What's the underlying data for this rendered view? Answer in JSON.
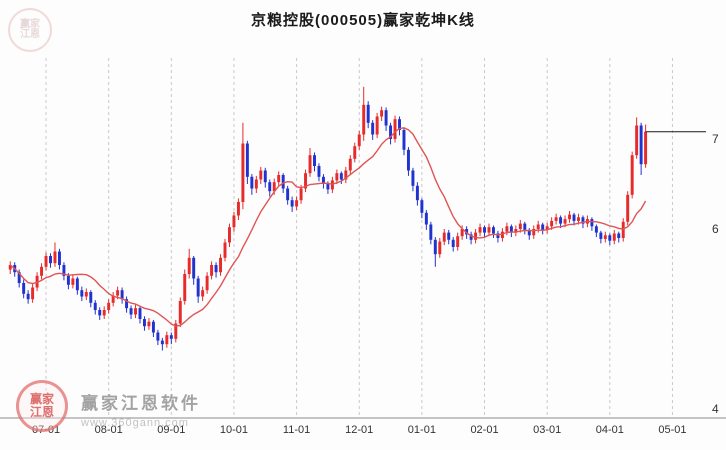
{
  "title": "京粮控股(000505)赢家乾坤K线",
  "watermark": {
    "logo_text_top": "赢家",
    "logo_text_bottom": "江恩",
    "brand": "赢家江恩软件",
    "url": "www.360gann.com"
  },
  "colors": {
    "up": "#e62b2b",
    "down": "#2133cf",
    "ma": "#e05555",
    "price_line": "#1a1a1a",
    "grid": "#c9c9c9",
    "axis": "#8a8a8a",
    "label": "#333333",
    "bg": "#fdfdfd"
  },
  "chart_data": {
    "type": "candlestick",
    "title": "京粮控股(000505)赢家乾坤K线",
    "ohlc_order": [
      "open",
      "high",
      "low",
      "close"
    ],
    "ylim": [
      3.9,
      7.9
    ],
    "y_ticks": [
      {
        "label": "7",
        "value": 7
      },
      {
        "label": "6",
        "value": 6
      },
      {
        "label": "4",
        "value": 4
      }
    ],
    "x_ticks": [
      {
        "label": "07-01",
        "index": 8
      },
      {
        "label": "08-01",
        "index": 22
      },
      {
        "label": "09-01",
        "index": 36
      },
      {
        "label": "10-01",
        "index": 50
      },
      {
        "label": "11-01",
        "index": 64
      },
      {
        "label": "12-01",
        "index": 78
      },
      {
        "label": "01-01",
        "index": 92
      },
      {
        "label": "02-01",
        "index": 106
      },
      {
        "label": "03-01",
        "index": 120
      },
      {
        "label": "04-01",
        "index": 134
      },
      {
        "label": "05-01",
        "index": 148
      }
    ],
    "total_slots": 156,
    "grid": "vertical-dashed",
    "legend": "none",
    "ma_window": 12,
    "price_line": 7.08,
    "candles": [
      [
        5.55,
        5.64,
        5.5,
        5.6
      ],
      [
        5.6,
        5.63,
        5.47,
        5.52
      ],
      [
        5.52,
        5.55,
        5.35,
        5.4
      ],
      [
        5.4,
        5.44,
        5.23,
        5.28
      ],
      [
        5.28,
        5.32,
        5.17,
        5.22
      ],
      [
        5.22,
        5.39,
        5.18,
        5.35
      ],
      [
        5.35,
        5.52,
        5.31,
        5.48
      ],
      [
        5.48,
        5.62,
        5.44,
        5.58
      ],
      [
        5.58,
        5.74,
        5.54,
        5.7
      ],
      [
        5.7,
        5.73,
        5.57,
        5.62
      ],
      [
        5.62,
        5.85,
        5.58,
        5.75
      ],
      [
        5.75,
        5.78,
        5.55,
        5.6
      ],
      [
        5.6,
        5.63,
        5.43,
        5.48
      ],
      [
        5.48,
        5.51,
        5.33,
        5.38
      ],
      [
        5.38,
        5.49,
        5.34,
        5.45
      ],
      [
        5.45,
        5.47,
        5.27,
        5.32
      ],
      [
        5.32,
        5.36,
        5.2,
        5.25
      ],
      [
        5.25,
        5.34,
        5.21,
        5.3
      ],
      [
        5.3,
        5.32,
        5.13,
        5.18
      ],
      [
        5.18,
        5.21,
        5.05,
        5.1
      ],
      [
        5.1,
        5.13,
        4.99,
        5.04
      ],
      [
        5.04,
        5.14,
        5.0,
        5.1
      ],
      [
        5.1,
        5.22,
        5.06,
        5.18
      ],
      [
        5.18,
        5.3,
        5.14,
        5.26
      ],
      [
        5.26,
        5.36,
        5.22,
        5.32
      ],
      [
        5.32,
        5.35,
        5.17,
        5.22
      ],
      [
        5.22,
        5.25,
        5.07,
        5.12
      ],
      [
        5.12,
        5.15,
        5.0,
        5.05
      ],
      [
        5.05,
        5.16,
        5.01,
        5.12
      ],
      [
        5.12,
        5.14,
        4.95,
        5.0
      ],
      [
        5.0,
        5.03,
        4.87,
        4.92
      ],
      [
        4.92,
        5.01,
        4.88,
        4.97
      ],
      [
        4.97,
        4.99,
        4.8,
        4.85
      ],
      [
        4.85,
        4.88,
        4.71,
        4.76
      ],
      [
        4.76,
        4.79,
        4.65,
        4.72
      ],
      [
        4.72,
        4.86,
        4.68,
        4.82
      ],
      [
        4.82,
        4.85,
        4.72,
        4.78
      ],
      [
        4.78,
        4.99,
        4.74,
        4.95
      ],
      [
        4.95,
        5.24,
        4.91,
        5.2
      ],
      [
        5.2,
        5.55,
        5.16,
        5.5
      ],
      [
        5.5,
        5.78,
        5.45,
        5.68
      ],
      [
        5.68,
        5.7,
        5.38,
        5.45
      ],
      [
        5.45,
        5.48,
        5.18,
        5.25
      ],
      [
        5.25,
        5.36,
        5.2,
        5.32
      ],
      [
        5.32,
        5.52,
        5.28,
        5.48
      ],
      [
        5.48,
        5.64,
        5.44,
        5.6
      ],
      [
        5.6,
        5.63,
        5.46,
        5.52
      ],
      [
        5.52,
        5.72,
        5.48,
        5.68
      ],
      [
        5.68,
        5.89,
        5.64,
        5.85
      ],
      [
        5.85,
        6.06,
        5.8,
        6.02
      ],
      [
        6.02,
        6.19,
        5.97,
        6.15
      ],
      [
        6.15,
        6.34,
        6.1,
        6.3
      ],
      [
        6.3,
        7.18,
        6.22,
        6.95
      ],
      [
        6.95,
        6.98,
        6.5,
        6.58
      ],
      [
        6.58,
        6.61,
        6.38,
        6.45
      ],
      [
        6.45,
        6.59,
        6.4,
        6.55
      ],
      [
        6.55,
        6.69,
        6.5,
        6.65
      ],
      [
        6.65,
        6.68,
        6.46,
        6.52
      ],
      [
        6.52,
        6.55,
        6.36,
        6.42
      ],
      [
        6.42,
        6.56,
        6.38,
        6.52
      ],
      [
        6.52,
        6.64,
        6.48,
        6.6
      ],
      [
        6.6,
        6.62,
        6.4,
        6.45
      ],
      [
        6.45,
        6.48,
        6.27,
        6.32
      ],
      [
        6.32,
        6.36,
        6.19,
        6.25
      ],
      [
        6.25,
        6.36,
        6.21,
        6.32
      ],
      [
        6.32,
        6.49,
        6.28,
        6.45
      ],
      [
        6.45,
        6.66,
        6.41,
        6.62
      ],
      [
        6.62,
        6.9,
        6.58,
        6.82
      ],
      [
        6.82,
        6.85,
        6.64,
        6.7
      ],
      [
        6.7,
        6.73,
        6.53,
        6.58
      ],
      [
        6.58,
        6.61,
        6.45,
        6.5
      ],
      [
        6.5,
        6.53,
        6.39,
        6.44
      ],
      [
        6.44,
        6.58,
        6.4,
        6.54
      ],
      [
        6.54,
        6.66,
        6.5,
        6.62
      ],
      [
        6.62,
        6.64,
        6.5,
        6.55
      ],
      [
        6.55,
        6.69,
        6.51,
        6.65
      ],
      [
        6.65,
        6.82,
        6.61,
        6.78
      ],
      [
        6.78,
        6.96,
        6.74,
        6.92
      ],
      [
        6.92,
        7.09,
        6.88,
        7.05
      ],
      [
        7.05,
        7.58,
        6.98,
        7.38
      ],
      [
        7.38,
        7.42,
        7.12,
        7.18
      ],
      [
        7.18,
        7.21,
        6.99,
        7.05
      ],
      [
        7.05,
        7.29,
        7.01,
        7.25
      ],
      [
        7.25,
        7.36,
        7.2,
        7.32
      ],
      [
        7.32,
        7.35,
        7.09,
        7.15
      ],
      [
        7.15,
        7.18,
        6.94,
        7.0
      ],
      [
        7.0,
        7.26,
        6.96,
        7.22
      ],
      [
        7.22,
        7.25,
        7.04,
        7.1
      ],
      [
        7.1,
        7.13,
        6.82,
        6.88
      ],
      [
        6.88,
        6.91,
        6.59,
        6.65
      ],
      [
        6.65,
        6.68,
        6.42,
        6.48
      ],
      [
        6.48,
        6.52,
        6.26,
        6.32
      ],
      [
        6.32,
        6.34,
        6.12,
        6.18
      ],
      [
        6.18,
        6.21,
        5.99,
        6.05
      ],
      [
        6.05,
        6.08,
        5.83,
        5.88
      ],
      [
        5.88,
        5.91,
        5.58,
        5.72
      ],
      [
        5.72,
        5.9,
        5.68,
        5.86
      ],
      [
        5.86,
        6.0,
        5.82,
        5.96
      ],
      [
        5.96,
        5.99,
        5.83,
        5.88
      ],
      [
        5.88,
        5.91,
        5.75,
        5.8
      ],
      [
        5.8,
        5.96,
        5.76,
        5.92
      ],
      [
        5.92,
        6.04,
        5.88,
        6.0
      ],
      [
        6.0,
        6.03,
        5.89,
        5.94
      ],
      [
        5.94,
        5.97,
        5.83,
        5.88
      ],
      [
        5.88,
        6.0,
        5.84,
        5.96
      ],
      [
        5.96,
        6.06,
        5.92,
        6.02
      ],
      [
        6.02,
        6.04,
        5.91,
        5.96
      ],
      [
        5.96,
        6.06,
        5.92,
        6.02
      ],
      [
        6.02,
        6.04,
        5.9,
        5.95
      ],
      [
        5.95,
        5.98,
        5.85,
        5.9
      ],
      [
        5.9,
        6.01,
        5.86,
        5.97
      ],
      [
        5.97,
        6.07,
        5.93,
        6.03
      ],
      [
        6.03,
        6.05,
        5.91,
        5.96
      ],
      [
        5.96,
        6.04,
        5.92,
        6.0
      ],
      [
        6.0,
        6.1,
        5.96,
        6.06
      ],
      [
        6.06,
        6.08,
        5.94,
        5.99
      ],
      [
        5.99,
        6.01,
        5.88,
        5.93
      ],
      [
        5.93,
        6.04,
        5.89,
        6.0
      ],
      [
        6.0,
        6.09,
        5.96,
        6.05
      ],
      [
        6.05,
        6.07,
        5.94,
        5.99
      ],
      [
        5.99,
        6.07,
        5.95,
        6.03
      ],
      [
        6.03,
        6.13,
        5.99,
        6.09
      ],
      [
        6.09,
        6.17,
        6.05,
        6.13
      ],
      [
        6.13,
        6.15,
        6.01,
        6.06
      ],
      [
        6.06,
        6.15,
        6.02,
        6.11
      ],
      [
        6.11,
        6.2,
        6.07,
        6.16
      ],
      [
        6.16,
        6.18,
        6.04,
        6.09
      ],
      [
        6.09,
        6.17,
        6.05,
        6.13
      ],
      [
        6.13,
        6.15,
        6.01,
        6.06
      ],
      [
        6.06,
        6.15,
        6.02,
        6.11
      ],
      [
        6.11,
        6.13,
        5.98,
        6.03
      ],
      [
        6.03,
        6.05,
        5.91,
        5.96
      ],
      [
        5.96,
        5.98,
        5.84,
        5.89
      ],
      [
        5.89,
        5.97,
        5.85,
        5.93
      ],
      [
        5.93,
        5.95,
        5.82,
        5.87
      ],
      [
        5.87,
        5.99,
        5.83,
        5.95
      ],
      [
        5.95,
        5.97,
        5.85,
        5.9
      ],
      [
        5.9,
        6.12,
        5.86,
        6.08
      ],
      [
        6.08,
        6.42,
        6.04,
        6.38
      ],
      [
        6.38,
        6.86,
        6.34,
        6.82
      ],
      [
        6.82,
        7.24,
        6.78,
        7.15
      ],
      [
        7.15,
        7.18,
        6.6,
        6.72
      ],
      [
        6.72,
        7.16,
        6.68,
        7.08
      ]
    ]
  }
}
